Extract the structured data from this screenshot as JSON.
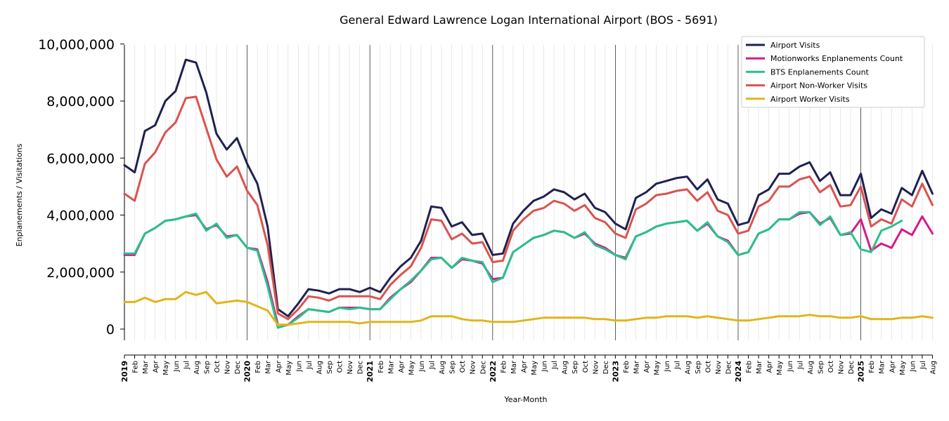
{
  "chart_data": {
    "type": "line",
    "title": "General Edward Lawrence Logan International Airport (BOS - 5691)",
    "xlabel": "Year-Month",
    "ylabel": "Enplanements / Visitations",
    "ylim": [
      -400000,
      10000000
    ],
    "yticks": [
      0,
      2000000,
      4000000,
      6000000,
      8000000,
      10000000
    ],
    "ytick_labels": [
      "0",
      "2,000,000",
      "4,000,000",
      "6,000,000",
      "8,000,000",
      "10,000,000"
    ],
    "grid": "vertical monthly",
    "legend_position": "top-right",
    "month_labels": [
      "Feb",
      "Mar",
      "Apr",
      "May",
      "Jun",
      "Jul",
      "Aug",
      "Sep",
      "Oct",
      "Nov",
      "Dec"
    ],
    "year_labels": [
      "2019",
      "2020",
      "2021",
      "2022",
      "2023",
      "2024",
      "2025"
    ],
    "x_start": "2019-01",
    "x_end": "2025-08",
    "series": [
      {
        "name": "Airport Visits",
        "color": "#1f2150",
        "start": "2019-01",
        "values": [
          5750000,
          5500000,
          6950000,
          7150000,
          8000000,
          8350000,
          9450000,
          9350000,
          8300000,
          6850000,
          6300000,
          6700000,
          5800000,
          5100000,
          3600000,
          700000,
          450000,
          900000,
          1400000,
          1350000,
          1250000,
          1400000,
          1400000,
          1300000,
          1450000,
          1300000,
          1800000,
          2200000,
          2500000,
          3100000,
          4300000,
          4250000,
          3600000,
          3750000,
          3300000,
          3350000,
          2600000,
          2650000,
          3700000,
          4150000,
          4500000,
          4650000,
          4900000,
          4800000,
          4550000,
          4750000,
          4250000,
          4100000,
          3700000,
          3500000,
          4600000,
          4800000,
          5100000,
          5200000,
          5300000,
          5350000,
          4900000,
          5250000,
          4550000,
          4400000,
          3650000,
          3750000,
          4700000,
          4900000,
          5450000,
          5450000,
          5700000,
          5850000,
          5200000,
          5500000,
          4700000,
          4700000,
          5450000,
          3900000,
          4200000,
          4050000,
          4950000,
          4700000,
          5550000,
          4750000
        ]
      },
      {
        "name": "Motionworks Enplanements Count",
        "color": "#d51a8c",
        "start": "2019-01",
        "values": [
          2600000,
          2600000,
          3350000,
          3550000,
          3800000,
          3850000,
          3950000,
          4000000,
          3500000,
          3650000,
          3250000,
          3300000,
          2850000,
          2800000,
          1650000,
          150000,
          150000,
          450000,
          700000,
          650000,
          600000,
          750000,
          750000,
          750000,
          700000,
          700000,
          1100000,
          1400000,
          1650000,
          2050000,
          2500000,
          2500000,
          2150000,
          2450000,
          2400000,
          2300000,
          1750000,
          1800000,
          2700000,
          2950000,
          3200000,
          3300000,
          3450000,
          3400000,
          3200000,
          3350000,
          3000000,
          2850000,
          2600000,
          2500000,
          3250000,
          3400000,
          3600000,
          3700000,
          3750000,
          3800000,
          3450000,
          3700000,
          3250000,
          3100000,
          2600000,
          2700000,
          3350000,
          3500000,
          3850000,
          3850000,
          4050000,
          4100000,
          3700000,
          3900000,
          3300000,
          3350000,
          3850000,
          2750000,
          3000000,
          2850000,
          3500000,
          3300000,
          3950000,
          3350000
        ]
      },
      {
        "name": "BTS Enplanements Count",
        "color": "#27c28d",
        "start": "2019-01",
        "values": [
          2650000,
          2650000,
          3350000,
          3550000,
          3800000,
          3850000,
          3950000,
          4050000,
          3450000,
          3700000,
          3200000,
          3300000,
          2850000,
          2750000,
          1500000,
          50000,
          150000,
          400000,
          700000,
          650000,
          600000,
          750000,
          700000,
          750000,
          700000,
          700000,
          1050000,
          1400000,
          1700000,
          2050000,
          2450000,
          2500000,
          2150000,
          2500000,
          2400000,
          2350000,
          1650000,
          1800000,
          2700000,
          2950000,
          3200000,
          3300000,
          3450000,
          3400000,
          3200000,
          3400000,
          2950000,
          2800000,
          2600000,
          2450000,
          3250000,
          3400000,
          3600000,
          3700000,
          3750000,
          3800000,
          3450000,
          3750000,
          3250000,
          3050000,
          2600000,
          2700000,
          3350000,
          3500000,
          3850000,
          3850000,
          4100000,
          4100000,
          3650000,
          3950000,
          3300000,
          3400000,
          2800000,
          2700000,
          3450000,
          3600000,
          3800000
        ]
      },
      {
        "name": "Airport Non-Worker Visits",
        "color": "#d9534f",
        "start": "2019-01",
        "values": [
          4750000,
          4500000,
          5800000,
          6200000,
          6900000,
          7250000,
          8100000,
          8150000,
          7050000,
          5950000,
          5350000,
          5700000,
          4850000,
          4350000,
          2950000,
          550000,
          350000,
          700000,
          1150000,
          1100000,
          1000000,
          1150000,
          1150000,
          1150000,
          1150000,
          1050000,
          1550000,
          1900000,
          2200000,
          2850000,
          3850000,
          3800000,
          3150000,
          3350000,
          3000000,
          3050000,
          2350000,
          2400000,
          3450000,
          3850000,
          4150000,
          4250000,
          4500000,
          4400000,
          4150000,
          4350000,
          3900000,
          3750000,
          3350000,
          3200000,
          4200000,
          4400000,
          4700000,
          4750000,
          4850000,
          4900000,
          4500000,
          4800000,
          4150000,
          4000000,
          3350000,
          3450000,
          4300000,
          4500000,
          5000000,
          5000000,
          5250000,
          5350000,
          4800000,
          5050000,
          4300000,
          4350000,
          5000000,
          3600000,
          3850000,
          3700000,
          4550000,
          4300000,
          5100000,
          4350000
        ]
      },
      {
        "name": "Airport Worker Visits",
        "color": "#e2b41b",
        "start": "2019-01",
        "values": [
          950000,
          950000,
          1100000,
          950000,
          1050000,
          1050000,
          1300000,
          1200000,
          1300000,
          900000,
          950000,
          1000000,
          950000,
          800000,
          650000,
          150000,
          150000,
          200000,
          250000,
          250000,
          250000,
          250000,
          250000,
          200000,
          250000,
          250000,
          250000,
          250000,
          250000,
          300000,
          450000,
          450000,
          450000,
          350000,
          300000,
          300000,
          250000,
          250000,
          250000,
          300000,
          350000,
          400000,
          400000,
          400000,
          400000,
          400000,
          350000,
          350000,
          300000,
          300000,
          350000,
          400000,
          400000,
          450000,
          450000,
          450000,
          400000,
          450000,
          400000,
          350000,
          300000,
          300000,
          350000,
          400000,
          450000,
          450000,
          450000,
          500000,
          450000,
          450000,
          400000,
          400000,
          450000,
          350000,
          350000,
          350000,
          400000,
          400000,
          450000,
          400000
        ]
      }
    ]
  }
}
